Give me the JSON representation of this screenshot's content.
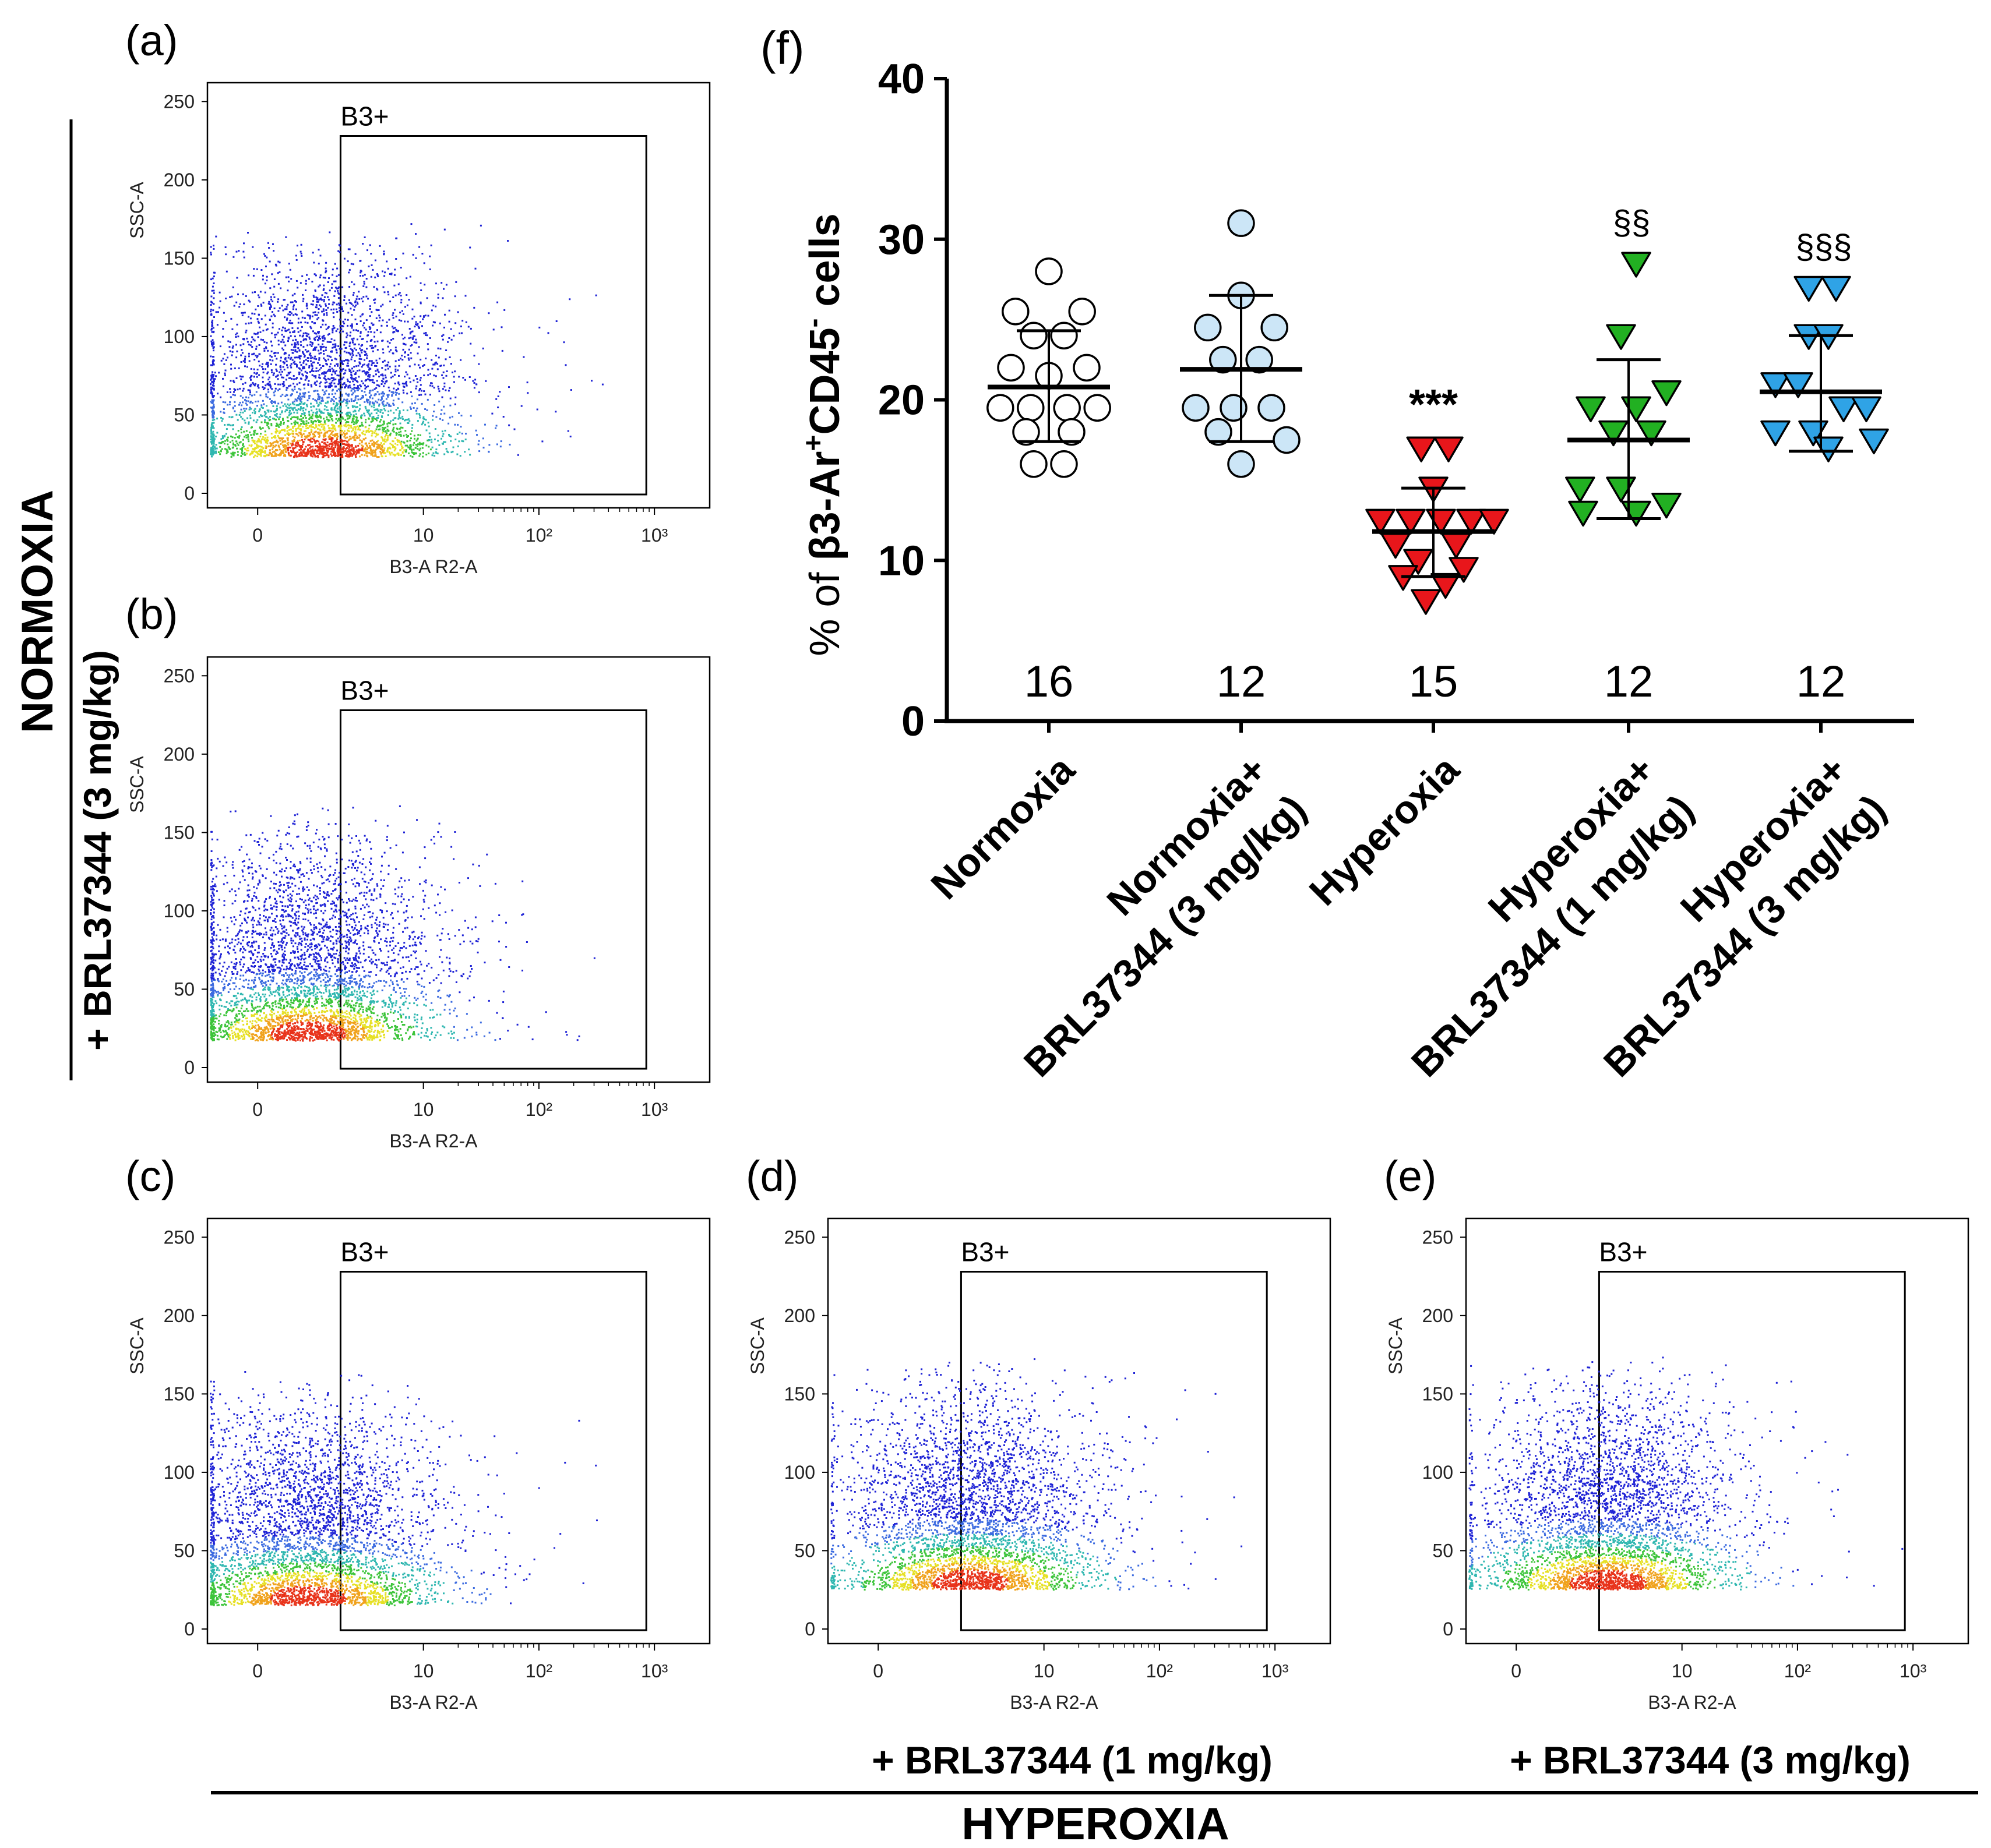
{
  "flow_panels": [
    {
      "label": "(a)",
      "gate_label": "B3+",
      "xlabel": "B3-A R2-A",
      "ylabel": "SSC-A",
      "x_ticks": [
        "0",
        "10",
        "10²",
        "10³"
      ],
      "y_ticks": [
        "0",
        "50",
        "100",
        "150",
        "200",
        "250"
      ],
      "gate_x_start": 5,
      "cloud_center_x": 4.0,
      "cloud_center_y": 28,
      "cloud_spread_x": 2.6,
      "cloud_max_y": 150
    },
    {
      "label": "(b)",
      "gate_label": "B3+",
      "xlabel": "B3-A R2-A",
      "ylabel": "SSC-A",
      "x_ticks": [
        "0",
        "10",
        "10²",
        "10³"
      ],
      "y_ticks": [
        "0",
        "50",
        "100",
        "150",
        "200",
        "250"
      ],
      "gate_x_start": 5,
      "cloud_center_x": 3.0,
      "cloud_center_y": 22,
      "cloud_spread_x": 2.4,
      "cloud_max_y": 150
    },
    {
      "label": "(c)",
      "gate_label": "B3+",
      "xlabel": "B3-A R2-A",
      "ylabel": "SSC-A",
      "x_ticks": [
        "0",
        "10",
        "10²",
        "10³"
      ],
      "y_ticks": [
        "0",
        "50",
        "100",
        "150",
        "200",
        "250"
      ],
      "gate_x_start": 5,
      "cloud_center_x": 3.0,
      "cloud_center_y": 20,
      "cloud_spread_x": 2.2,
      "cloud_max_y": 150
    },
    {
      "label": "(d)",
      "gate_label": "B3+",
      "xlabel": "B3-A R2-A",
      "ylabel": "SSC-A",
      "x_ticks": [
        "0",
        "10",
        "10²",
        "10³"
      ],
      "y_ticks": [
        "0",
        "50",
        "100",
        "150",
        "200",
        "250"
      ],
      "gate_x_start": 5,
      "cloud_center_x": 5.5,
      "cloud_center_y": 30,
      "cloud_spread_x": 3.0,
      "cloud_max_y": 150
    },
    {
      "label": "(e)",
      "gate_label": "B3+",
      "xlabel": "B3-A R2-A",
      "ylabel": "SSC-A",
      "x_ticks": [
        "0",
        "10",
        "10²",
        "10³"
      ],
      "y_ticks": [
        "0",
        "50",
        "100",
        "150",
        "200",
        "250"
      ],
      "gate_x_start": 5,
      "cloud_center_x": 5.5,
      "cloud_center_y": 30,
      "cloud_spread_x": 3.0,
      "cloud_max_y": 150
    }
  ],
  "side_labels": {
    "normoxia": "NORMOXIA",
    "normoxia_brl": "+ BRL37344 (3 mg/kg)",
    "hyperoxia": "HYPEROXIA",
    "brl_1": "+ BRL37344 (1 mg/kg)",
    "brl_3": "+ BRL37344 (3 mg/kg)"
  },
  "chart_data": {
    "type": "scatter",
    "panel_label": "(f)",
    "title": "",
    "ylabel": "% of β3-Ar⁺CD45⁻ cells",
    "ylabel_parts": {
      "pre": "% of β3-Ar",
      "sup1": "+",
      "mid": "CD45",
      "sup2": "-",
      "post": " cells"
    },
    "ylim": [
      0,
      40
    ],
    "yticks": [
      0,
      10,
      20,
      30,
      40
    ],
    "categories": [
      [
        "Normoxia"
      ],
      [
        "Normoxia+",
        "BRL37344 (3 mg/kg)"
      ],
      [
        "Hyperoxia"
      ],
      [
        "Hyperoxia+",
        "BRL37344 (1 mg/kg)"
      ],
      [
        "Hyperoxia+",
        "BRL37344 (3 mg/kg)"
      ]
    ],
    "series": [
      {
        "name": "Normoxia",
        "marker": "circle",
        "color": "#ffffff",
        "n": "16",
        "mean": 20.8,
        "sd_upper": 24.3,
        "sd_lower": 17.4,
        "annotation": "",
        "points": [
          [
            0,
            28.0
          ],
          [
            -0.22,
            25.5
          ],
          [
            0.22,
            25.5
          ],
          [
            -0.1,
            24.0
          ],
          [
            0.1,
            24.0
          ],
          [
            -0.25,
            22.0
          ],
          [
            0.25,
            22.0
          ],
          [
            0,
            21.5
          ],
          [
            -0.32,
            19.5
          ],
          [
            -0.12,
            19.5
          ],
          [
            0.12,
            19.5
          ],
          [
            0.32,
            19.5
          ],
          [
            -0.15,
            18.0
          ],
          [
            0.15,
            18.0
          ],
          [
            -0.1,
            16.0
          ],
          [
            0.1,
            16.0
          ]
        ]
      },
      {
        "name": "Normoxia+ BRL37344 (3 mg/kg)",
        "marker": "circle",
        "color": "#cce6f7",
        "n": "12",
        "mean": 21.9,
        "sd_upper": 26.5,
        "sd_lower": 17.4,
        "annotation": "",
        "points": [
          [
            0,
            31.0
          ],
          [
            0,
            26.5
          ],
          [
            -0.22,
            24.5
          ],
          [
            0.22,
            24.5
          ],
          [
            -0.12,
            22.5
          ],
          [
            0.12,
            22.5
          ],
          [
            -0.3,
            19.5
          ],
          [
            -0.05,
            19.5
          ],
          [
            0.2,
            19.5
          ],
          [
            -0.15,
            18.0
          ],
          [
            0.3,
            17.5
          ],
          [
            0,
            16.0
          ]
        ]
      },
      {
        "name": "Hyperoxia",
        "marker": "triangle-down",
        "color": "#e8161b",
        "n": "15",
        "mean": 11.8,
        "sd_upper": 14.5,
        "sd_lower": 9.0,
        "annotation": "***",
        "points": [
          [
            -0.08,
            17.0
          ],
          [
            0.1,
            17.0
          ],
          [
            0,
            14.5
          ],
          [
            -0.35,
            12.5
          ],
          [
            -0.15,
            12.5
          ],
          [
            0.05,
            12.5
          ],
          [
            0.25,
            12.5
          ],
          [
            0.4,
            12.5
          ],
          [
            -0.25,
            11.0
          ],
          [
            0.15,
            11.0
          ],
          [
            -0.1,
            10.0
          ],
          [
            0.2,
            9.5
          ],
          [
            -0.2,
            9.0
          ],
          [
            0.08,
            8.5
          ],
          [
            -0.05,
            7.5
          ]
        ]
      },
      {
        "name": "Hyperoxia+ BRL37344 (1 mg/kg)",
        "marker": "triangle-down",
        "color": "#22b022",
        "n": "12",
        "mean": 17.5,
        "sd_upper": 22.5,
        "sd_lower": 12.6,
        "annotation": "§§",
        "points": [
          [
            0.05,
            28.5
          ],
          [
            -0.05,
            24.0
          ],
          [
            0.25,
            20.5
          ],
          [
            -0.25,
            19.5
          ],
          [
            0.05,
            19.5
          ],
          [
            -0.1,
            18.0
          ],
          [
            0.15,
            18.0
          ],
          [
            -0.32,
            14.5
          ],
          [
            -0.05,
            14.5
          ],
          [
            -0.3,
            13.0
          ],
          [
            0.05,
            13.0
          ],
          [
            0.25,
            13.5
          ]
        ]
      },
      {
        "name": "Hyperoxia+ BRL37344 (3 mg/kg)",
        "marker": "triangle-down",
        "color": "#2fa3e6",
        "n": "12",
        "mean": 20.5,
        "sd_upper": 24.0,
        "sd_lower": 16.8,
        "annotation": "§§§",
        "points": [
          [
            -0.08,
            27.0
          ],
          [
            0.1,
            27.0
          ],
          [
            -0.08,
            24.0
          ],
          [
            0.05,
            24.0
          ],
          [
            -0.3,
            21.0
          ],
          [
            -0.15,
            21.0
          ],
          [
            0.15,
            19.5
          ],
          [
            0.3,
            19.5
          ],
          [
            -0.3,
            18.0
          ],
          [
            -0.05,
            18.0
          ],
          [
            0.05,
            17.0
          ],
          [
            0.35,
            17.5
          ]
        ]
      }
    ]
  }
}
